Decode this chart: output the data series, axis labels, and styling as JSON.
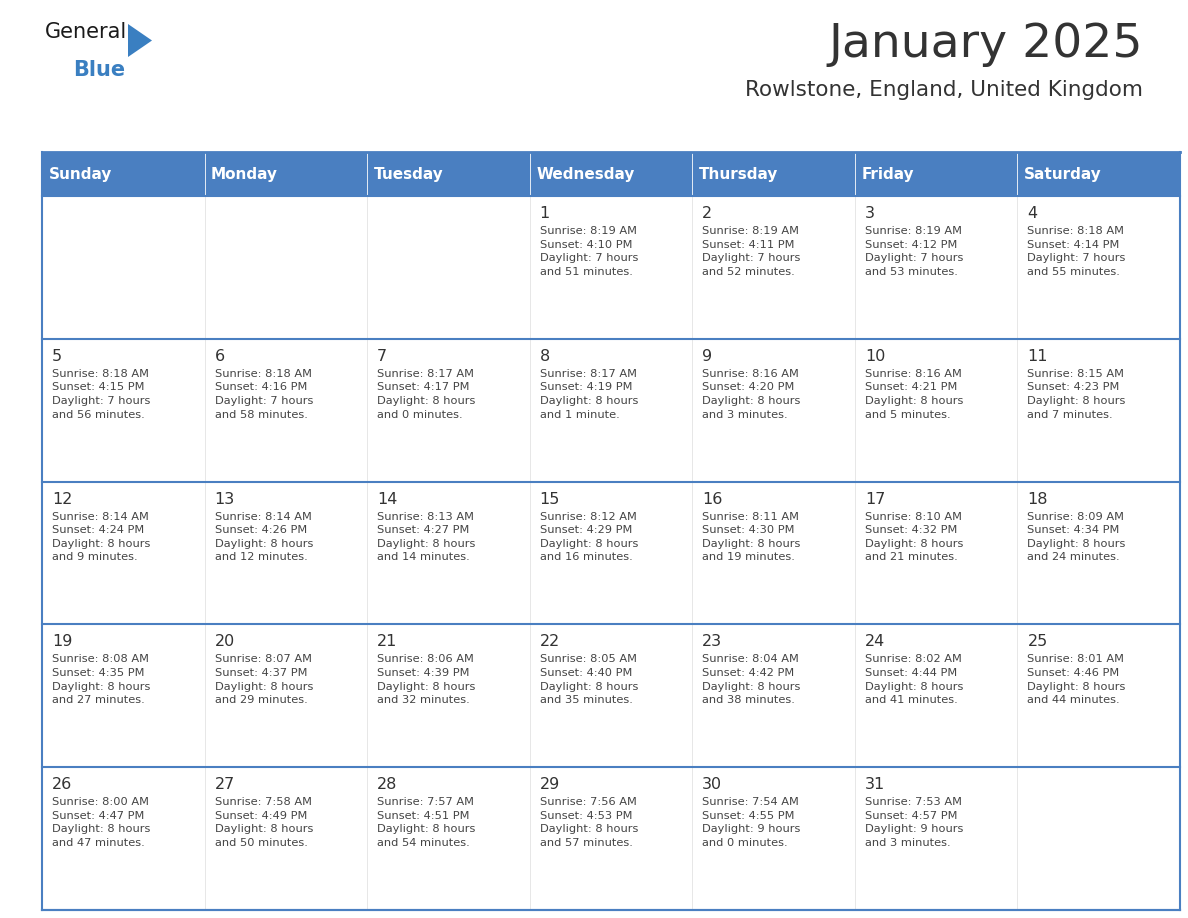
{
  "title": "January 2025",
  "subtitle": "Rowlstone, England, United Kingdom",
  "header_bg": "#4a7fc1",
  "header_text_color": "#FFFFFF",
  "cell_bg": "#FFFFFF",
  "row_sep_color": "#4a7fc1",
  "text_color": "#333333",
  "info_color": "#444444",
  "logo_general_color": "#1a1a1a",
  "logo_blue_color": "#3a7fc1",
  "logo_triangle_color": "#3a7fc1",
  "days_of_week": [
    "Sunday",
    "Monday",
    "Tuesday",
    "Wednesday",
    "Thursday",
    "Friday",
    "Saturday"
  ],
  "calendar_data": [
    [
      {
        "day": "",
        "info": ""
      },
      {
        "day": "",
        "info": ""
      },
      {
        "day": "",
        "info": ""
      },
      {
        "day": "1",
        "info": "Sunrise: 8:19 AM\nSunset: 4:10 PM\nDaylight: 7 hours\nand 51 minutes."
      },
      {
        "day": "2",
        "info": "Sunrise: 8:19 AM\nSunset: 4:11 PM\nDaylight: 7 hours\nand 52 minutes."
      },
      {
        "day": "3",
        "info": "Sunrise: 8:19 AM\nSunset: 4:12 PM\nDaylight: 7 hours\nand 53 minutes."
      },
      {
        "day": "4",
        "info": "Sunrise: 8:18 AM\nSunset: 4:14 PM\nDaylight: 7 hours\nand 55 minutes."
      }
    ],
    [
      {
        "day": "5",
        "info": "Sunrise: 8:18 AM\nSunset: 4:15 PM\nDaylight: 7 hours\nand 56 minutes."
      },
      {
        "day": "6",
        "info": "Sunrise: 8:18 AM\nSunset: 4:16 PM\nDaylight: 7 hours\nand 58 minutes."
      },
      {
        "day": "7",
        "info": "Sunrise: 8:17 AM\nSunset: 4:17 PM\nDaylight: 8 hours\nand 0 minutes."
      },
      {
        "day": "8",
        "info": "Sunrise: 8:17 AM\nSunset: 4:19 PM\nDaylight: 8 hours\nand 1 minute."
      },
      {
        "day": "9",
        "info": "Sunrise: 8:16 AM\nSunset: 4:20 PM\nDaylight: 8 hours\nand 3 minutes."
      },
      {
        "day": "10",
        "info": "Sunrise: 8:16 AM\nSunset: 4:21 PM\nDaylight: 8 hours\nand 5 minutes."
      },
      {
        "day": "11",
        "info": "Sunrise: 8:15 AM\nSunset: 4:23 PM\nDaylight: 8 hours\nand 7 minutes."
      }
    ],
    [
      {
        "day": "12",
        "info": "Sunrise: 8:14 AM\nSunset: 4:24 PM\nDaylight: 8 hours\nand 9 minutes."
      },
      {
        "day": "13",
        "info": "Sunrise: 8:14 AM\nSunset: 4:26 PM\nDaylight: 8 hours\nand 12 minutes."
      },
      {
        "day": "14",
        "info": "Sunrise: 8:13 AM\nSunset: 4:27 PM\nDaylight: 8 hours\nand 14 minutes."
      },
      {
        "day": "15",
        "info": "Sunrise: 8:12 AM\nSunset: 4:29 PM\nDaylight: 8 hours\nand 16 minutes."
      },
      {
        "day": "16",
        "info": "Sunrise: 8:11 AM\nSunset: 4:30 PM\nDaylight: 8 hours\nand 19 minutes."
      },
      {
        "day": "17",
        "info": "Sunrise: 8:10 AM\nSunset: 4:32 PM\nDaylight: 8 hours\nand 21 minutes."
      },
      {
        "day": "18",
        "info": "Sunrise: 8:09 AM\nSunset: 4:34 PM\nDaylight: 8 hours\nand 24 minutes."
      }
    ],
    [
      {
        "day": "19",
        "info": "Sunrise: 8:08 AM\nSunset: 4:35 PM\nDaylight: 8 hours\nand 27 minutes."
      },
      {
        "day": "20",
        "info": "Sunrise: 8:07 AM\nSunset: 4:37 PM\nDaylight: 8 hours\nand 29 minutes."
      },
      {
        "day": "21",
        "info": "Sunrise: 8:06 AM\nSunset: 4:39 PM\nDaylight: 8 hours\nand 32 minutes."
      },
      {
        "day": "22",
        "info": "Sunrise: 8:05 AM\nSunset: 4:40 PM\nDaylight: 8 hours\nand 35 minutes."
      },
      {
        "day": "23",
        "info": "Sunrise: 8:04 AM\nSunset: 4:42 PM\nDaylight: 8 hours\nand 38 minutes."
      },
      {
        "day": "24",
        "info": "Sunrise: 8:02 AM\nSunset: 4:44 PM\nDaylight: 8 hours\nand 41 minutes."
      },
      {
        "day": "25",
        "info": "Sunrise: 8:01 AM\nSunset: 4:46 PM\nDaylight: 8 hours\nand 44 minutes."
      }
    ],
    [
      {
        "day": "26",
        "info": "Sunrise: 8:00 AM\nSunset: 4:47 PM\nDaylight: 8 hours\nand 47 minutes."
      },
      {
        "day": "27",
        "info": "Sunrise: 7:58 AM\nSunset: 4:49 PM\nDaylight: 8 hours\nand 50 minutes."
      },
      {
        "day": "28",
        "info": "Sunrise: 7:57 AM\nSunset: 4:51 PM\nDaylight: 8 hours\nand 54 minutes."
      },
      {
        "day": "29",
        "info": "Sunrise: 7:56 AM\nSunset: 4:53 PM\nDaylight: 8 hours\nand 57 minutes."
      },
      {
        "day": "30",
        "info": "Sunrise: 7:54 AM\nSunset: 4:55 PM\nDaylight: 9 hours\nand 0 minutes."
      },
      {
        "day": "31",
        "info": "Sunrise: 7:53 AM\nSunset: 4:57 PM\nDaylight: 9 hours\nand 3 minutes."
      },
      {
        "day": "",
        "info": ""
      }
    ]
  ]
}
